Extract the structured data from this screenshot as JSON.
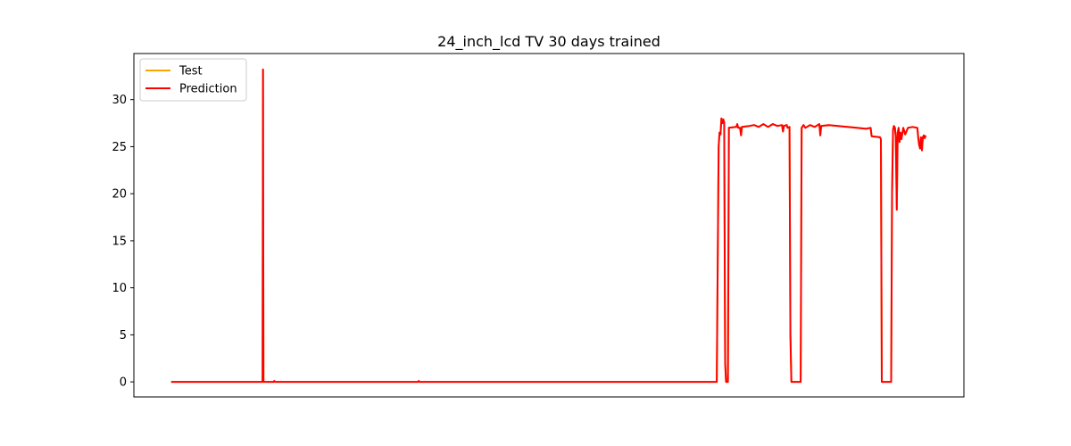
{
  "chart_data": {
    "type": "line",
    "title": "24_inch_lcd TV 30 days trained",
    "xlabel": "",
    "ylabel": "",
    "x_ticks_visible": false,
    "x_range": [
      -40,
      850
    ],
    "ylim": [
      -1.6,
      34.9
    ],
    "yticks": [
      0,
      5,
      10,
      15,
      20,
      25,
      30
    ],
    "grid": false,
    "legend": {
      "placement": "top-left"
    },
    "series": [
      {
        "name": "Test",
        "color": "#ffa500",
        "points": [
          [
            0,
            0
          ],
          [
            98,
            0
          ],
          [
            98.5,
            33.2
          ],
          [
            99,
            0
          ],
          [
            110,
            0
          ],
          [
            110.5,
            0.1
          ],
          [
            111,
            0
          ],
          [
            265,
            0
          ],
          [
            265.5,
            0.1
          ],
          [
            266,
            0
          ],
          [
            585,
            0
          ],
          [
            586,
            12
          ],
          [
            587,
            25
          ],
          [
            588,
            26.5
          ],
          [
            589,
            26.3
          ],
          [
            590,
            28
          ],
          [
            591,
            27.5
          ],
          [
            592,
            27.9
          ],
          [
            593,
            27.6
          ],
          [
            594,
            2
          ],
          [
            595,
            0
          ],
          [
            597,
            0
          ],
          [
            598,
            27
          ],
          [
            606,
            27.1
          ],
          [
            607,
            27.4
          ],
          [
            608,
            27
          ],
          [
            610,
            27
          ],
          [
            611,
            26.2
          ],
          [
            612,
            27.1
          ],
          [
            620,
            27.2
          ],
          [
            625,
            27.3
          ],
          [
            630,
            27.1
          ],
          [
            635,
            27.4
          ],
          [
            640,
            27.1
          ],
          [
            645,
            27.4
          ],
          [
            650,
            27.2
          ],
          [
            655,
            27.3
          ],
          [
            656,
            26.6
          ],
          [
            657,
            27.2
          ],
          [
            660,
            27.3
          ],
          [
            661,
            27
          ],
          [
            663,
            27.1
          ],
          [
            664,
            5
          ],
          [
            665,
            0
          ],
          [
            675,
            0
          ],
          [
            676,
            27
          ],
          [
            678,
            27.3
          ],
          [
            680,
            27
          ],
          [
            685,
            27.3
          ],
          [
            690,
            27.1
          ],
          [
            695,
            27.4
          ],
          [
            696,
            26.2
          ],
          [
            697,
            27.2
          ],
          [
            705,
            27.3
          ],
          [
            715,
            27.2
          ],
          [
            725,
            27.1
          ],
          [
            735,
            27
          ],
          [
            745,
            26.9
          ],
          [
            750,
            27
          ],
          [
            751,
            26.1
          ],
          [
            760,
            26
          ],
          [
            761,
            25.8
          ],
          [
            762,
            0
          ],
          [
            772,
            0
          ],
          [
            773,
            20
          ],
          [
            774,
            26.8
          ],
          [
            775,
            27.2
          ],
          [
            776,
            27
          ],
          [
            777,
            26
          ],
          [
            778,
            18.3
          ],
          [
            779,
            26.5
          ],
          [
            780,
            27
          ],
          [
            781,
            25.5
          ],
          [
            782,
            26.5
          ],
          [
            783,
            25.8
          ],
          [
            785,
            27
          ],
          [
            787,
            26.3
          ],
          [
            790,
            27
          ],
          [
            795,
            27.1
          ],
          [
            800,
            27
          ],
          [
            801,
            26
          ],
          [
            802,
            25.2
          ],
          [
            803,
            24.8
          ],
          [
            804,
            26
          ],
          [
            805,
            24.6
          ],
          [
            806,
            26
          ],
          [
            807,
            26.2
          ],
          [
            808,
            25.9
          ],
          [
            809,
            26.2
          ]
        ]
      },
      {
        "name": "Prediction",
        "color": "#ff0000",
        "points": [
          [
            0,
            0
          ],
          [
            98,
            0
          ],
          [
            98.5,
            33.2
          ],
          [
            99,
            0
          ],
          [
            110,
            0
          ],
          [
            110.5,
            0.1
          ],
          [
            111,
            0
          ],
          [
            265,
            0
          ],
          [
            265.5,
            0.1
          ],
          [
            266,
            0
          ],
          [
            585,
            0
          ],
          [
            586,
            12
          ],
          [
            587,
            25
          ],
          [
            588,
            26.5
          ],
          [
            589,
            26.3
          ],
          [
            590,
            28
          ],
          [
            591,
            27.5
          ],
          [
            592,
            27.9
          ],
          [
            593,
            27.6
          ],
          [
            594,
            2
          ],
          [
            595,
            0
          ],
          [
            597,
            0
          ],
          [
            598,
            27
          ],
          [
            606,
            27.1
          ],
          [
            607,
            27.4
          ],
          [
            608,
            27
          ],
          [
            610,
            27
          ],
          [
            611,
            26.2
          ],
          [
            612,
            27.1
          ],
          [
            620,
            27.2
          ],
          [
            625,
            27.3
          ],
          [
            630,
            27.1
          ],
          [
            635,
            27.4
          ],
          [
            640,
            27.1
          ],
          [
            645,
            27.4
          ],
          [
            650,
            27.2
          ],
          [
            655,
            27.3
          ],
          [
            656,
            26.6
          ],
          [
            657,
            27.2
          ],
          [
            660,
            27.3
          ],
          [
            661,
            27
          ],
          [
            663,
            27.1
          ],
          [
            664,
            5
          ],
          [
            665,
            0
          ],
          [
            675,
            0
          ],
          [
            676,
            27
          ],
          [
            678,
            27.3
          ],
          [
            680,
            27
          ],
          [
            685,
            27.3
          ],
          [
            690,
            27.1
          ],
          [
            695,
            27.4
          ],
          [
            696,
            26.2
          ],
          [
            697,
            27.2
          ],
          [
            705,
            27.3
          ],
          [
            715,
            27.2
          ],
          [
            725,
            27.1
          ],
          [
            735,
            27
          ],
          [
            745,
            26.9
          ],
          [
            750,
            27
          ],
          [
            751,
            26.1
          ],
          [
            760,
            26
          ],
          [
            761,
            25.8
          ],
          [
            762,
            0
          ],
          [
            772,
            0
          ],
          [
            773,
            20
          ],
          [
            774,
            26.8
          ],
          [
            775,
            27.2
          ],
          [
            776,
            27
          ],
          [
            777,
            26
          ],
          [
            778,
            18.3
          ],
          [
            779,
            26.5
          ],
          [
            780,
            27
          ],
          [
            781,
            25.5
          ],
          [
            782,
            26.5
          ],
          [
            783,
            25.8
          ],
          [
            785,
            27
          ],
          [
            787,
            26.3
          ],
          [
            790,
            27
          ],
          [
            795,
            27.1
          ],
          [
            800,
            27
          ],
          [
            801,
            26
          ],
          [
            802,
            25.2
          ],
          [
            803,
            24.8
          ],
          [
            804,
            26
          ],
          [
            805,
            24.6
          ],
          [
            806,
            26
          ],
          [
            807,
            26.2
          ],
          [
            808,
            25.9
          ],
          [
            809,
            26.2
          ]
        ]
      }
    ]
  }
}
